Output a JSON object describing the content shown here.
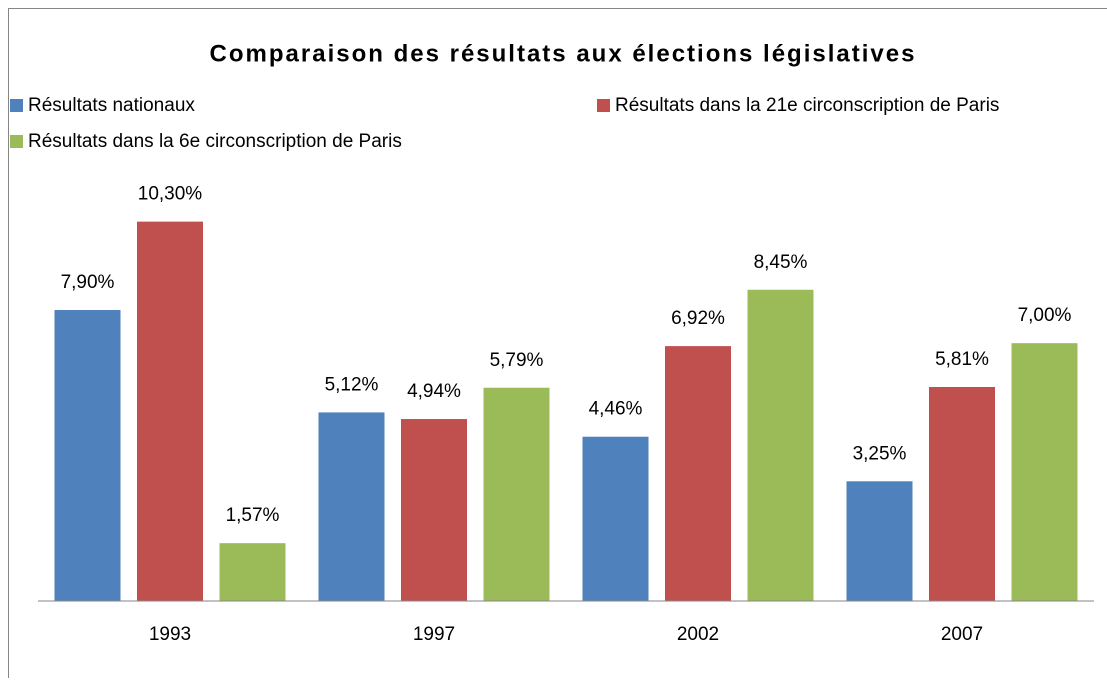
{
  "chart_data": {
    "type": "bar",
    "title": "Comparaison des résultats aux élections législatives",
    "categories": [
      "1993",
      "1997",
      "2002",
      "2007"
    ],
    "series": [
      {
        "name": "Résultats nationaux",
        "color": "#4f81bd",
        "values": [
          7.9,
          5.12,
          4.46,
          3.25
        ],
        "value_labels": [
          "7,90%",
          "5,12%",
          "4,46%",
          "3,25%"
        ]
      },
      {
        "name": "Résultats dans la 21e circonscription de Paris",
        "color": "#c0504d",
        "values": [
          10.3,
          4.94,
          6.92,
          5.81
        ],
        "value_labels": [
          "10,30%",
          "4,94%",
          "6,92%",
          "5,81%"
        ]
      },
      {
        "name": "Résultats dans la 6e circonscription de Paris",
        "color": "#9bbb59",
        "values": [
          1.57,
          5.79,
          8.45,
          7.0
        ],
        "value_labels": [
          "1,57%",
          "5,79%",
          "8,45%",
          "7,00%"
        ]
      }
    ],
    "ylim": [
      0,
      12
    ]
  }
}
